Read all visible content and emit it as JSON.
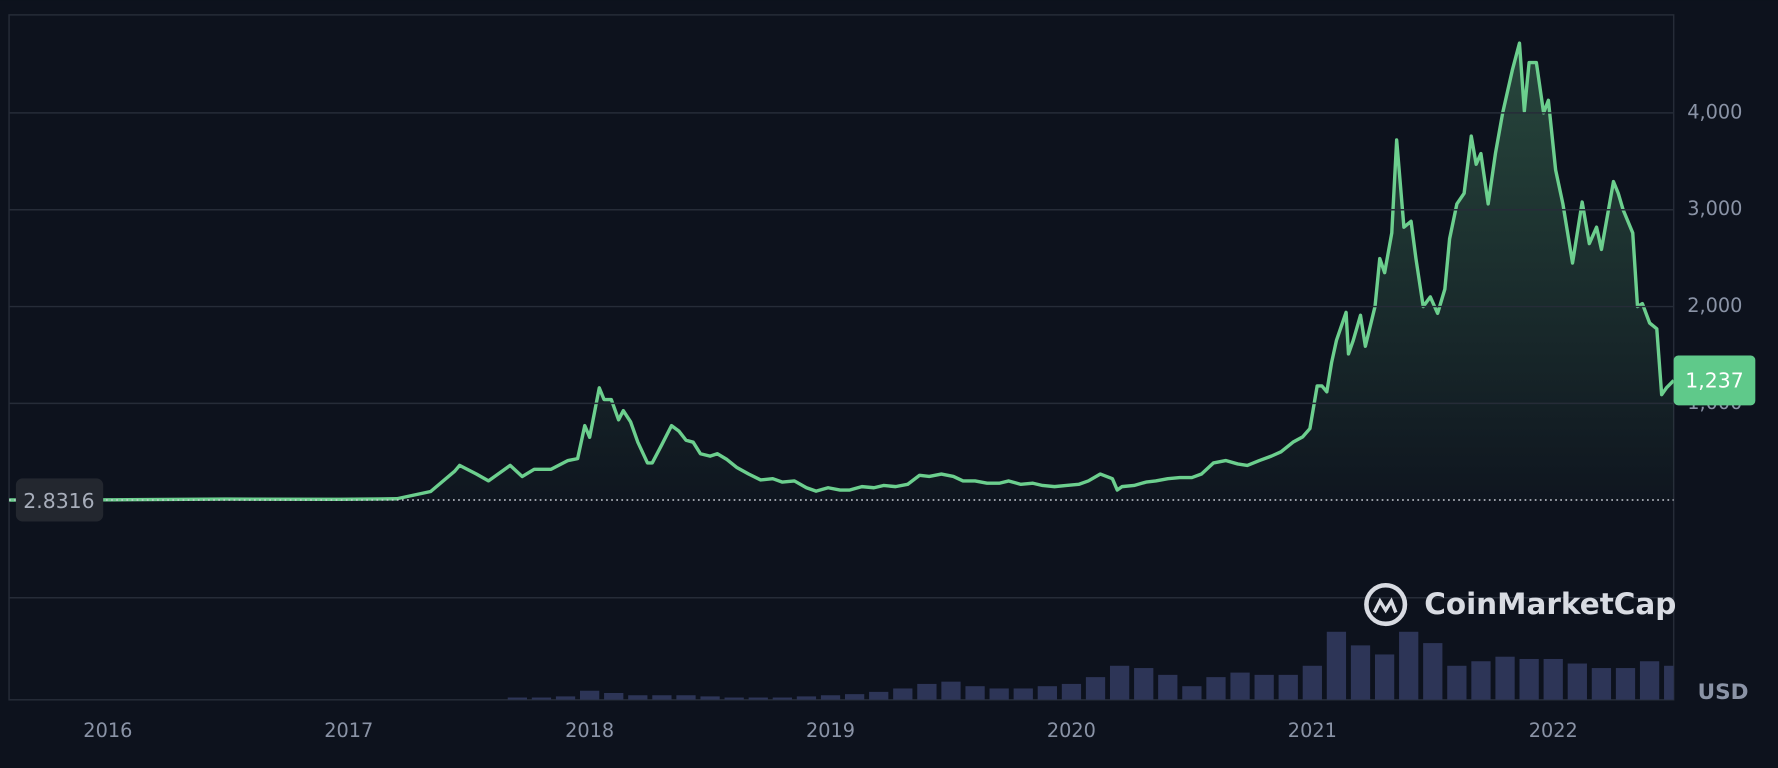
{
  "chart_data": {
    "type": "line",
    "color": "#6ccf8e",
    "x": [
      2015.59,
      2016.02,
      2016.49,
      2016.96,
      2017.2,
      2017.34,
      2017.44,
      2017.46,
      2017.53,
      2017.58,
      2017.62,
      2017.67,
      2017.72,
      2017.77,
      2017.84,
      2017.91,
      2017.95,
      2017.98,
      2018.0,
      2018.04,
      2018.06,
      2018.09,
      2018.12,
      2018.14,
      2018.17,
      2018.2,
      2018.24,
      2018.26,
      2018.3,
      2018.34,
      2018.37,
      2018.4,
      2018.43,
      2018.46,
      2018.5,
      2018.53,
      2018.57,
      2018.61,
      2018.66,
      2018.71,
      2018.76,
      2018.8,
      2018.85,
      2018.9,
      2018.94,
      2018.99,
      2019.04,
      2019.08,
      2019.13,
      2019.18,
      2019.22,
      2019.27,
      2019.32,
      2019.37,
      2019.41,
      2019.46,
      2019.51,
      2019.55,
      2019.6,
      2019.65,
      2019.7,
      2019.74,
      2019.79,
      2019.84,
      2019.88,
      2019.93,
      2019.98,
      2020.03,
      2020.07,
      2020.12,
      2020.17,
      2020.19,
      2020.21,
      2020.26,
      2020.31,
      2020.35,
      2020.4,
      2020.45,
      2020.5,
      2020.54,
      2020.59,
      2020.64,
      2020.69,
      2020.73,
      2020.78,
      2020.83,
      2020.87,
      2020.92,
      2020.96,
      2020.99,
      2021.02,
      2021.04,
      2021.06,
      2021.08,
      2021.1,
      2021.14,
      2021.15,
      2021.17,
      2021.2,
      2021.22,
      2021.26,
      2021.28,
      2021.3,
      2021.33,
      2021.35,
      2021.38,
      2021.41,
      2021.43,
      2021.46,
      2021.49,
      2021.52,
      2021.55,
      2021.57,
      2021.6,
      2021.63,
      2021.66,
      2021.68,
      2021.7,
      2021.73,
      2021.76,
      2021.79,
      2021.83,
      2021.86,
      2021.88,
      2021.9,
      2021.93,
      2021.96,
      2021.98,
      2022.01,
      2022.04,
      2022.08,
      2022.12,
      2022.15,
      2022.18,
      2022.2,
      2022.25,
      2022.27,
      2022.29,
      2022.33,
      2022.35,
      2022.37,
      2022.4,
      2022.43,
      2022.45,
      2022.47,
      2022.5
    ],
    "values": [
      2.83,
      5,
      12,
      9,
      15,
      90,
      300,
      360,
      270,
      200,
      270,
      360,
      245,
      320,
      320,
      410,
      430,
      770,
      650,
      1160,
      1040,
      1040,
      830,
      925,
      810,
      600,
      385,
      385,
      575,
      770,
      715,
      620,
      600,
      480,
      455,
      480,
      420,
      340,
      270,
      210,
      222,
      187,
      199,
      129,
      94,
      129,
      105,
      105,
      140,
      129,
      152,
      140,
      164,
      258,
      246,
      270,
      246,
      199,
      199,
      176,
      176,
      199,
      164,
      176,
      152,
      140,
      152,
      164,
      199,
      270,
      222,
      105,
      140,
      152,
      187,
      199,
      222,
      234,
      234,
      270,
      385,
      410,
      375,
      360,
      410,
      455,
      500,
      600,
      655,
      740,
      1180,
      1180,
      1120,
      1420,
      1650,
      1940,
      1510,
      1650,
      1910,
      1590,
      2000,
      2495,
      2350,
      2760,
      3720,
      2820,
      2880,
      2495,
      2000,
      2100,
      1930,
      2180,
      2700,
      3060,
      3170,
      3760,
      3470,
      3580,
      3060,
      3580,
      4000,
      4440,
      4720,
      4020,
      4520,
      4520,
      4000,
      4130,
      3410,
      3060,
      2450,
      3080,
      2650,
      2820,
      2590,
      3290,
      3170,
      3000,
      2760,
      2000,
      2030,
      1830,
      1770,
      1090,
      1160,
      1237
    ],
    "xlim": [
      2015.59,
      2022.5
    ],
    "xticks": [
      2016,
      2017,
      2018,
      2019,
      2020,
      2021,
      2022
    ],
    "ylim": [
      0,
      5000
    ],
    "yticks": [
      {
        "value": 1000,
        "label": "1,000"
      },
      {
        "value": 2000,
        "label": "2,000"
      },
      {
        "value": 3000,
        "label": "3,000"
      },
      {
        "value": 4000,
        "label": "4,000"
      }
    ],
    "grid": true,
    "start_price": 2.8316,
    "current_price": {
      "value": 1237,
      "label": "1,237"
    },
    "unit": "USD",
    "watermark": "CoinMarketCap",
    "volume": {
      "color": "#2d3557",
      "vlim": [
        0,
        90
      ],
      "x": [
        2017.7,
        2017.8,
        2017.9,
        2018.0,
        2018.1,
        2018.2,
        2018.3,
        2018.4,
        2018.5,
        2018.6,
        2018.7,
        2018.8,
        2018.9,
        2019.0,
        2019.1,
        2019.2,
        2019.3,
        2019.4,
        2019.5,
        2019.6,
        2019.7,
        2019.8,
        2019.9,
        2020.0,
        2020.1,
        2020.2,
        2020.3,
        2020.4,
        2020.5,
        2020.6,
        2020.7,
        2020.8,
        2020.9,
        2021.0,
        2021.1,
        2021.2,
        2021.3,
        2021.4,
        2021.5,
        2021.6,
        2021.7,
        2021.8,
        2021.9,
        2022.0,
        2022.1,
        2022.2,
        2022.3,
        2022.4,
        2022.5
      ],
      "values": [
        2,
        2,
        3,
        8,
        6,
        4,
        4,
        4,
        3,
        2,
        2,
        2,
        3,
        4,
        5,
        7,
        10,
        14,
        16,
        12,
        10,
        10,
        12,
        14,
        20,
        30,
        28,
        22,
        12,
        20,
        24,
        22,
        22,
        30,
        60,
        48,
        40,
        60,
        50,
        30,
        34,
        38,
        36,
        36,
        32,
        28,
        28,
        34,
        30
      ]
    }
  }
}
